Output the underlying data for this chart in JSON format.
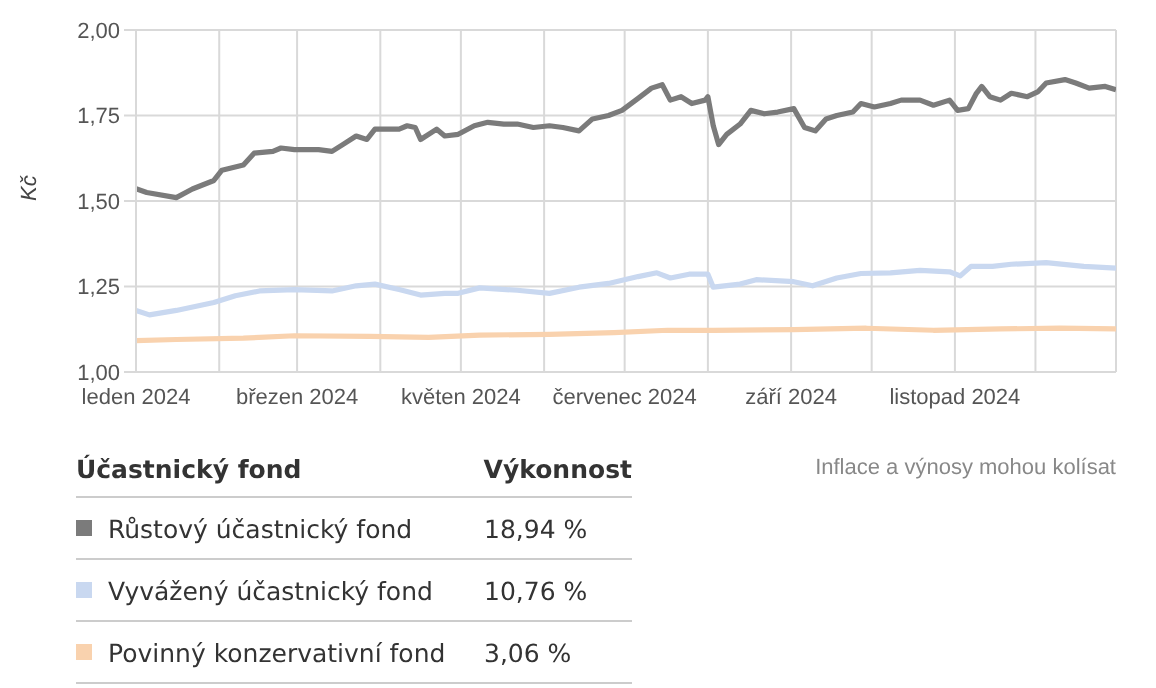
{
  "chart_data": {
    "type": "line",
    "ylabel": "Kč",
    "xlim": [
      "2024-01-01",
      "2024-12-31"
    ],
    "ylim": [
      1,
      2
    ],
    "yticks": [
      {
        "value": 1,
        "label": "1,00"
      },
      {
        "value": 1.25,
        "label": "1,25"
      },
      {
        "value": 1.5,
        "label": "1,50"
      },
      {
        "value": 1.75,
        "label": "1,75"
      },
      {
        "value": 2,
        "label": "2,00"
      }
    ],
    "xticks": [
      {
        "value": "2024-01-01",
        "label": "leden 2024"
      },
      {
        "value": "2024-02-01",
        "label": null
      },
      {
        "value": "2024-03-01",
        "label": "březen 2024"
      },
      {
        "value": "2024-04-01",
        "label": null
      },
      {
        "value": "2024-05-01",
        "label": "květen 2024"
      },
      {
        "value": "2024-06-01",
        "label": null
      },
      {
        "value": "2024-07-01",
        "label": "červenec 2024"
      },
      {
        "value": "2024-08-01",
        "label": null
      },
      {
        "value": "2024-09-01",
        "label": "září 2024"
      },
      {
        "value": "2024-10-01",
        "label": null
      },
      {
        "value": "2024-11-01",
        "label": "listopad 2024"
      },
      {
        "value": "2024-12-01",
        "label": null
      }
    ],
    "grid": true,
    "legend": "bottom",
    "series": [
      {
        "name": "Růstový účastnický fond",
        "color": "#7b7b7b",
        "x": [
          "2024-01-01",
          "2024-01-05",
          "2024-01-16",
          "2024-01-22",
          "2024-01-30",
          "2024-02-02",
          "2024-02-10",
          "2024-02-14",
          "2024-02-21",
          "2024-02-24",
          "2024-02-29",
          "2024-03-09",
          "2024-03-14",
          "2024-03-18",
          "2024-03-23",
          "2024-03-27",
          "2024-03-30",
          "2024-04-08",
          "2024-04-11",
          "2024-04-14",
          "2024-04-16",
          "2024-04-22",
          "2024-04-25",
          "2024-04-30",
          "2024-05-06",
          "2024-05-11",
          "2024-05-17",
          "2024-05-22",
          "2024-05-28",
          "2024-06-03",
          "2024-06-08",
          "2024-06-14",
          "2024-06-19",
          "2024-06-25",
          "2024-06-30",
          "2024-07-06",
          "2024-07-11",
          "2024-07-15",
          "2024-07-18",
          "2024-07-22",
          "2024-07-26",
          "2024-07-31",
          "2024-08-01",
          "2024-08-03",
          "2024-08-05",
          "2024-08-08",
          "2024-08-13",
          "2024-08-17",
          "2024-08-22",
          "2024-08-27",
          "2024-09-02",
          "2024-09-06",
          "2024-09-10",
          "2024-09-14",
          "2024-09-18",
          "2024-09-24",
          "2024-09-27",
          "2024-10-02",
          "2024-10-08",
          "2024-10-12",
          "2024-10-19",
          "2024-10-24",
          "2024-10-30",
          "2024-11-02",
          "2024-11-06",
          "2024-11-09",
          "2024-11-11",
          "2024-11-14",
          "2024-11-18",
          "2024-11-22",
          "2024-11-28",
          "2024-12-02",
          "2024-12-05",
          "2024-12-12",
          "2024-12-16",
          "2024-12-21",
          "2024-12-27",
          "2024-12-31"
        ],
        "values": [
          1.536,
          1.525,
          1.51,
          1.535,
          1.56,
          1.59,
          1.605,
          1.64,
          1.645,
          1.655,
          1.65,
          1.65,
          1.645,
          1.665,
          1.69,
          1.68,
          1.71,
          1.71,
          1.72,
          1.715,
          1.68,
          1.71,
          1.69,
          1.695,
          1.72,
          1.73,
          1.725,
          1.725,
          1.715,
          1.72,
          1.715,
          1.705,
          1.74,
          1.75,
          1.765,
          1.8,
          1.83,
          1.84,
          1.795,
          1.805,
          1.785,
          1.795,
          1.805,
          1.72,
          1.665,
          1.695,
          1.725,
          1.765,
          1.755,
          1.76,
          1.77,
          1.715,
          1.705,
          1.74,
          1.75,
          1.76,
          1.785,
          1.775,
          1.785,
          1.795,
          1.795,
          1.78,
          1.795,
          1.765,
          1.77,
          1.815,
          1.835,
          1.805,
          1.795,
          1.815,
          1.805,
          1.82,
          1.845,
          1.855,
          1.845,
          1.83,
          1.835,
          1.825
        ]
      },
      {
        "name": "Vyvážený účastnický fond",
        "color": "#c9d8f0",
        "x": [
          "2024-01-01",
          "2024-01-06",
          "2024-01-16",
          "2024-01-30",
          "2024-02-07",
          "2024-02-16",
          "2024-02-29",
          "2024-03-14",
          "2024-03-23",
          "2024-03-30",
          "2024-04-08",
          "2024-04-16",
          "2024-04-25",
          "2024-04-30",
          "2024-05-08",
          "2024-05-22",
          "2024-06-03",
          "2024-06-14",
          "2024-06-25",
          "2024-07-06",
          "2024-07-13",
          "2024-07-18",
          "2024-07-25",
          "2024-08-01",
          "2024-08-03",
          "2024-08-13",
          "2024-08-19",
          "2024-09-02",
          "2024-09-09",
          "2024-09-18",
          "2024-09-27",
          "2024-10-08",
          "2024-10-19",
          "2024-10-30",
          "2024-11-03",
          "2024-11-07",
          "2024-11-15",
          "2024-11-22",
          "2024-12-05",
          "2024-12-19",
          "2024-12-31"
        ],
        "values": [
          1.18,
          1.167,
          1.18,
          1.203,
          1.223,
          1.237,
          1.241,
          1.237,
          1.252,
          1.257,
          1.241,
          1.225,
          1.23,
          1.23,
          1.246,
          1.239,
          1.23,
          1.248,
          1.259,
          1.279,
          1.29,
          1.275,
          1.286,
          1.286,
          1.248,
          1.257,
          1.27,
          1.264,
          1.252,
          1.275,
          1.288,
          1.29,
          1.297,
          1.293,
          1.281,
          1.309,
          1.309,
          1.315,
          1.32,
          1.309,
          1.304
        ]
      },
      {
        "name": "Povinný konzervativní fond",
        "color": "#f9d2ae",
        "x": [
          "2024-01-01",
          "2024-01-16",
          "2024-02-10",
          "2024-02-29",
          "2024-03-28",
          "2024-04-19",
          "2024-05-08",
          "2024-06-03",
          "2024-06-27",
          "2024-07-17",
          "2024-08-03",
          "2024-09-02",
          "2024-09-29",
          "2024-10-24",
          "2024-11-18",
          "2024-12-10",
          "2024-12-31"
        ],
        "values": [
          1.092,
          1.095,
          1.099,
          1.106,
          1.104,
          1.101,
          1.108,
          1.11,
          1.115,
          1.122,
          1.122,
          1.124,
          1.128,
          1.122,
          1.126,
          1.128,
          1.126
        ]
      }
    ],
    "annotations": [
      "Účastnický fond",
      "Výkonnost",
      "18,94 %",
      "10,76 %",
      "3,06 %",
      "Inflace a výnosy mohou kolísat"
    ]
  }
}
